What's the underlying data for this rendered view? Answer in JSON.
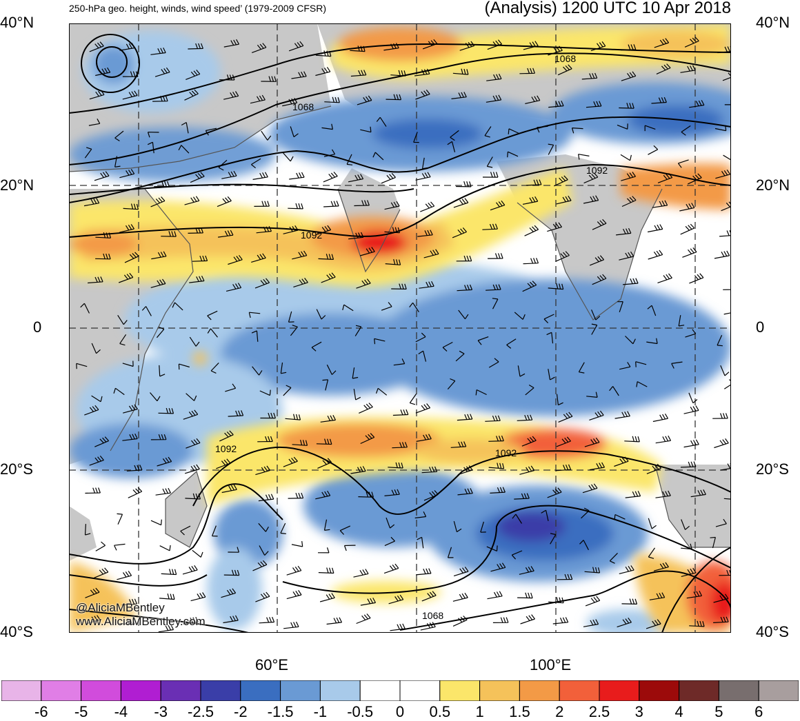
{
  "header": {
    "left": "250-hPa geo. height, winds, wind speed’ (1979-2009 CFSR)",
    "right": "(Analysis) 1200 UTC 10 Apr 2018"
  },
  "axes": {
    "lat_left": [
      "40°N",
      "20°N",
      "0",
      "20°S",
      "40°S"
    ],
    "lat_right": [
      "40°N",
      "20°N",
      "0",
      "20°S",
      "40°S"
    ],
    "lon": [
      "60°E",
      "100°E"
    ]
  },
  "contour_labels": [
    "1068",
    "1068",
    "1092",
    "1092",
    "1092",
    "1092",
    "1068"
  ],
  "colorbar": {
    "labels": [
      "-6",
      "-5",
      "-4",
      "-3",
      "-2.5",
      "-2",
      "-1.5",
      "-1",
      "-0.5",
      "0",
      "0.5",
      "1",
      "1.5",
      "2",
      "2.5",
      "3",
      "4",
      "5",
      "6"
    ],
    "colors": [
      "#e8b4e8",
      "#e07ee6",
      "#d14cdc",
      "#b01ed2",
      "#6a2fb4",
      "#3a3ea8",
      "#3a6ec0",
      "#6a9ad4",
      "#a8caea",
      "#ffffff",
      "#ffffff",
      "#fbe66a",
      "#f5c25a",
      "#f39a46",
      "#f2603a",
      "#e81c1c",
      "#9c0a0a",
      "#6e2a28",
      "#786e6e",
      "#a89e9e"
    ]
  },
  "credit": [
    "@AliciaMBentley",
    "www.AliciaMBentley.com"
  ]
}
